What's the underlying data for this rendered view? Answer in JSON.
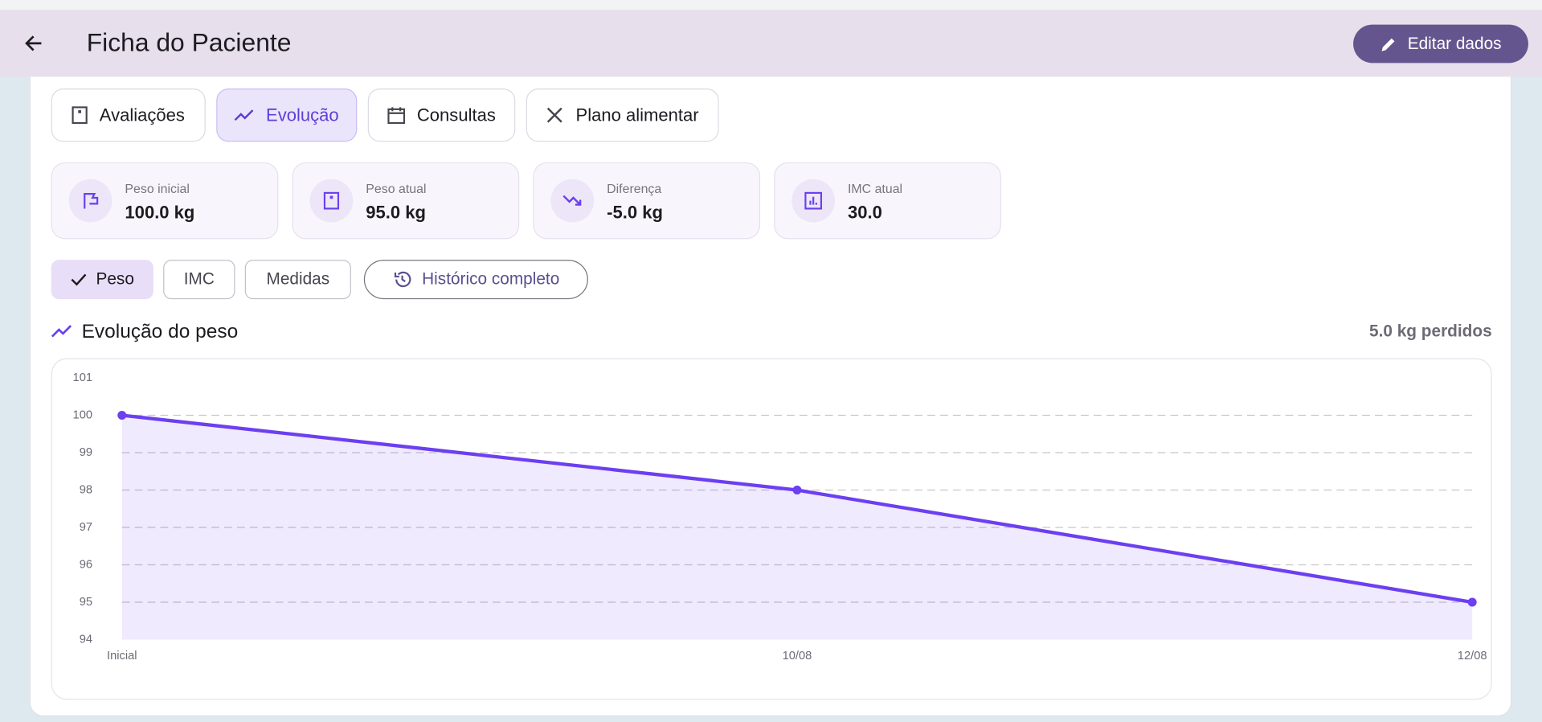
{
  "header": {
    "title": "Ficha do Paciente",
    "action": "Editar dados"
  },
  "tabs": [
    "Avaliações",
    "Evolução",
    "Consultas",
    "Plano alimentar"
  ],
  "stats": [
    {
      "label": "Peso inicial",
      "value": "100.0 kg"
    },
    {
      "label": "Peso atual",
      "value": "95.0 kg"
    },
    {
      "label": "Diferença",
      "value": "-5.0 kg"
    },
    {
      "label": "IMC atual",
      "value": "30.0"
    }
  ],
  "filters": [
    "Peso",
    "IMC",
    "Medidas",
    "Histórico completo"
  ],
  "chart_data": {
    "type": "line",
    "title": "Evolução do peso",
    "subtitle": "5.0 kg perdidos",
    "categories": [
      "Inicial",
      "10/08",
      "12/08"
    ],
    "values": [
      100,
      98,
      95
    ],
    "color": "#6c3ff0",
    "ylim": [
      94,
      101
    ],
    "yticks": [
      94,
      95,
      96,
      97,
      98,
      99,
      100,
      101
    ],
    "grid": true
  }
}
